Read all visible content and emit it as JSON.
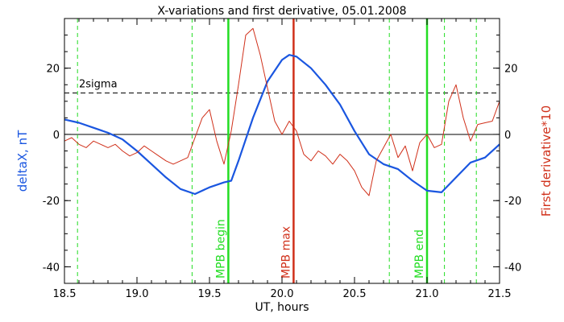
{
  "chart_data": {
    "type": "line",
    "title": "X-variations and first derivative, 05.01.2008",
    "xlabel": "UT, hours",
    "ylabel_left": "deltaX, nT",
    "ylabel_right": "First derivative*10",
    "xlim": [
      18.5,
      21.5
    ],
    "ylim": [
      -45,
      35
    ],
    "xticks": [
      18.5,
      19.0,
      19.5,
      20.0,
      20.5,
      21.0,
      21.5
    ],
    "xtick_labels": [
      "18.5",
      "19.0",
      "19.5",
      "20.0",
      "20.5",
      "21.0",
      "21.5"
    ],
    "yticks": [
      -40,
      -20,
      0,
      20
    ],
    "ytick_labels": [
      "-40",
      "-20",
      "0",
      "20"
    ],
    "threshold": {
      "label": "2sigma",
      "value": 12.5
    },
    "zero_line": 0,
    "colors": {
      "deltaX": "#1a56e0",
      "derivative": "#d0301a",
      "mpb_boundary": "#22dd22",
      "mpb_max": "#d0301a",
      "axis": "#000000"
    },
    "series": [
      {
        "key": "deltaX",
        "x": [
          18.5,
          18.6,
          18.7,
          18.8,
          18.9,
          19.0,
          19.1,
          19.2,
          19.3,
          19.4,
          19.5,
          19.6,
          19.65,
          19.7,
          19.8,
          19.9,
          20.0,
          20.05,
          20.1,
          20.2,
          20.3,
          20.4,
          20.5,
          20.6,
          20.7,
          20.8,
          20.9,
          21.0,
          21.1,
          21.2,
          21.3,
          21.4,
          21.5
        ],
        "y": [
          4.5,
          3.5,
          2.0,
          0.5,
          -1.5,
          -5.0,
          -9.0,
          -13.0,
          -16.5,
          -18.0,
          -16.0,
          -14.5,
          -14.0,
          -8.0,
          5.0,
          16.0,
          22.5,
          24.0,
          23.5,
          20.0,
          15.0,
          9.0,
          1.0,
          -6.0,
          -9.0,
          -10.5,
          -14.0,
          -17.0,
          -17.5,
          -13.0,
          -8.5,
          -7.0,
          -3.0
        ]
      },
      {
        "key": "derivative",
        "x": [
          18.5,
          18.55,
          18.6,
          18.65,
          18.7,
          18.75,
          18.8,
          18.85,
          18.9,
          18.95,
          19.0,
          19.05,
          19.1,
          19.15,
          19.2,
          19.25,
          19.3,
          19.35,
          19.4,
          19.45,
          19.5,
          19.55,
          19.6,
          19.65,
          19.7,
          19.75,
          19.8,
          19.85,
          19.9,
          19.95,
          20.0,
          20.05,
          20.1,
          20.15,
          20.2,
          20.25,
          20.3,
          20.35,
          20.4,
          20.45,
          20.5,
          20.55,
          20.6,
          20.65,
          20.7,
          20.75,
          20.8,
          20.85,
          20.9,
          20.95,
          21.0,
          21.05,
          21.1,
          21.15,
          21.2,
          21.25,
          21.3,
          21.35,
          21.4,
          21.45,
          21.5
        ],
        "y": [
          -2.0,
          -1.0,
          -3.0,
          -4.0,
          -2.0,
          -3.0,
          -4.0,
          -3.0,
          -5.0,
          -6.5,
          -5.5,
          -3.5,
          -5.0,
          -6.5,
          -8.0,
          -9.0,
          -8.0,
          -7.0,
          -1.0,
          5.0,
          7.5,
          -2.0,
          -9.0,
          1.0,
          15.0,
          30.0,
          32.0,
          24.0,
          14.0,
          4.0,
          0.0,
          4.0,
          1.0,
          -6.0,
          -8.0,
          -5.0,
          -6.5,
          -9.0,
          -6.0,
          -8.0,
          -11.0,
          -16.0,
          -18.5,
          -8.0,
          -4.0,
          0.0,
          -7.0,
          -3.5,
          -11.0,
          -2.5,
          0.0,
          -4.0,
          -3.0,
          10.0,
          15.0,
          5.0,
          -2.0,
          3.0,
          3.5,
          4.0,
          10.0
        ]
      }
    ],
    "vertical_markers": [
      {
        "x": 18.59,
        "style": "dashed",
        "label": ""
      },
      {
        "x": 19.38,
        "style": "dashed",
        "label": ""
      },
      {
        "x": 19.63,
        "style": "solid",
        "label": "MPB begin"
      },
      {
        "x": 20.08,
        "style": "solid",
        "label": "MPB max"
      },
      {
        "x": 20.74,
        "style": "dashed",
        "label": ""
      },
      {
        "x": 21.0,
        "style": "solid",
        "label": "MPB end"
      },
      {
        "x": 21.12,
        "style": "dashed",
        "label": ""
      },
      {
        "x": 21.34,
        "style": "dashed",
        "label": ""
      }
    ]
  }
}
